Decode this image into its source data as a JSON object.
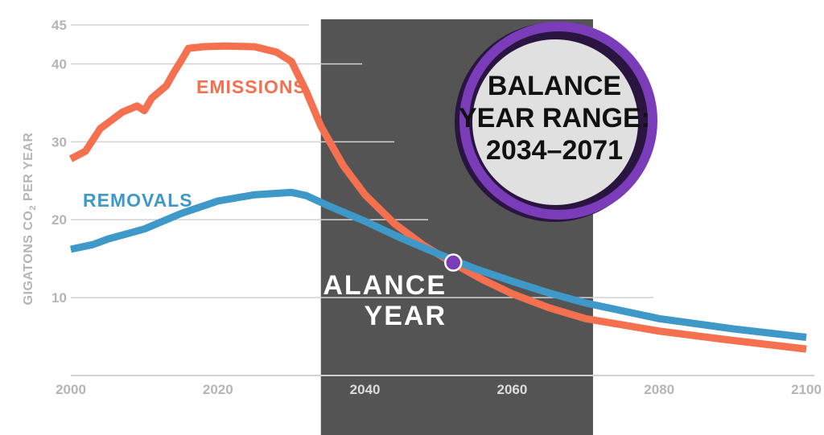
{
  "chart_data": {
    "type": "line",
    "ylabel": "GIGATONS CO2 PER YEAR",
    "ylabel_main": "GIGATONS CO",
    "ylabel_sub": "2",
    "ylabel_tail": " PER YEAR",
    "xlim": [
      2000,
      2100
    ],
    "ylim": [
      0,
      45
    ],
    "x_ticks": [
      2000,
      2020,
      2040,
      2060,
      2080,
      2100
    ],
    "y_ticks": [
      10,
      20,
      30,
      40,
      45
    ],
    "grid": "horizontal",
    "series": [
      {
        "name": "EMISSIONS",
        "color": "#f4704f",
        "x": [
          2000,
          2002,
          2004,
          2007,
          2009,
          2010,
          2011,
          2013,
          2014,
          2015,
          2016,
          2018,
          2021,
          2025,
          2028,
          2030,
          2032,
          2034,
          2037,
          2040,
          2044,
          2048,
          2052,
          2056,
          2060,
          2065,
          2070,
          2080,
          2090,
          2100
        ],
        "y": [
          27.8,
          28.8,
          31.7,
          33.8,
          34.6,
          34.0,
          35.6,
          37.2,
          38.9,
          40.4,
          42.0,
          42.2,
          42.3,
          42.2,
          41.5,
          40.3,
          36.5,
          32.0,
          27.0,
          23.2,
          19.5,
          16.7,
          14.4,
          12.3,
          10.5,
          8.7,
          7.3,
          5.7,
          4.5,
          3.4
        ]
      },
      {
        "name": "REMOVALS",
        "color": "#3e98c8",
        "x": [
          2000,
          2003,
          2005,
          2010,
          2015,
          2020,
          2025,
          2030,
          2032,
          2035,
          2040,
          2045,
          2050,
          2055,
          2060,
          2065,
          2070,
          2080,
          2090,
          2100
        ],
        "y": [
          16.2,
          16.8,
          17.5,
          18.8,
          20.8,
          22.4,
          23.2,
          23.5,
          23.1,
          21.8,
          19.8,
          17.6,
          15.6,
          13.7,
          12.1,
          10.6,
          9.3,
          7.3,
          6.0,
          4.9
        ]
      }
    ],
    "balance_year_range": [
      2034,
      2071
    ],
    "balance_point": {
      "x": 2052,
      "y": 14.5
    },
    "annotations": {
      "balance_label_line1": "BALANCE",
      "balance_label_line2": "YEAR",
      "callout_line1": "BALANCE",
      "callout_line2": "YEAR RANGE:",
      "callout_line3": "2034–2071"
    },
    "colors": {
      "band": "#545454",
      "grid": "#d2d2d2",
      "callout_ring": "#7a3cb8",
      "callout_fill": "#e0e0e0",
      "marker": "#7a3cb8"
    }
  }
}
